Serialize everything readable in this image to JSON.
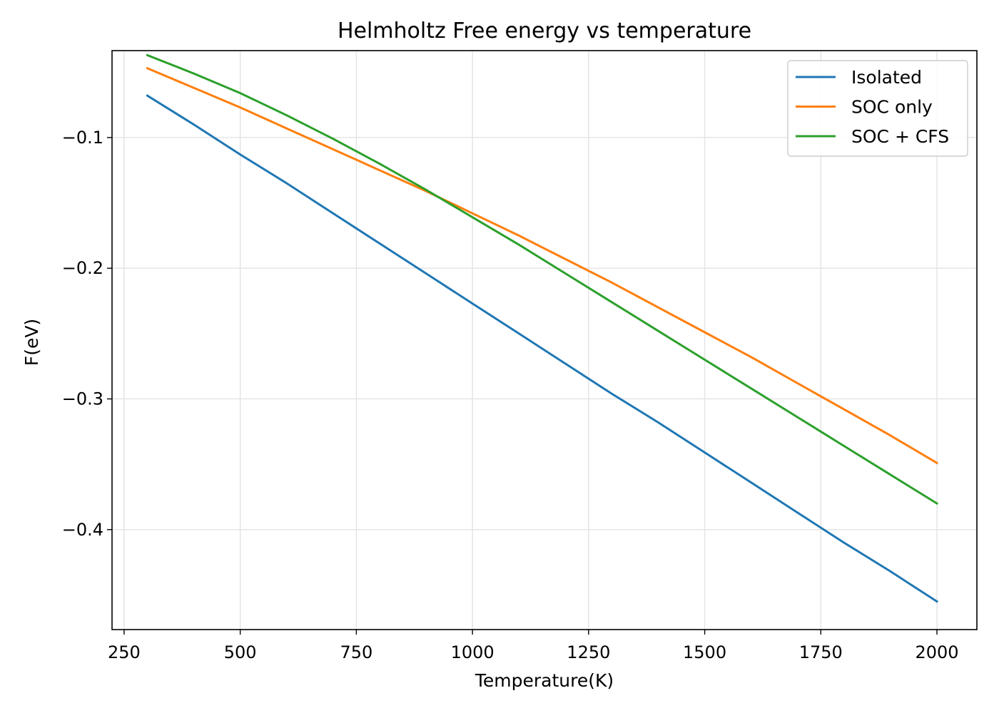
{
  "chart_data": {
    "type": "line",
    "title": "Helmholtz Free energy vs temperature",
    "xlabel": "Temperature(K)",
    "ylabel": "F(eV)",
    "xlim": [
      224,
      2086
    ],
    "ylim": [
      -0.4765,
      -0.0335
    ],
    "xticks": [
      250,
      500,
      750,
      1000,
      1250,
      1500,
      1750,
      2000
    ],
    "xtick_labels": [
      "250",
      "500",
      "750",
      "1000",
      "1250",
      "1500",
      "1750",
      "2000"
    ],
    "yticks": [
      -0.1,
      -0.2,
      -0.3,
      -0.4
    ],
    "ytick_labels": [
      "−0.1",
      "−0.2",
      "−0.3",
      "−0.4"
    ],
    "grid": true,
    "legend_position": "top-right",
    "x": [
      300,
      400,
      500,
      600,
      700,
      800,
      900,
      1000,
      1100,
      1200,
      1300,
      1400,
      1500,
      1600,
      1700,
      1800,
      1900,
      2000
    ],
    "series": [
      {
        "name": "Isolated",
        "color": "#1f77b4",
        "values": [
          -0.068,
          -0.09,
          -0.113,
          -0.135,
          -0.158,
          -0.181,
          -0.204,
          -0.227,
          -0.25,
          -0.273,
          -0.296,
          -0.318,
          -0.341,
          -0.364,
          -0.387,
          -0.41,
          -0.432,
          -0.455
        ]
      },
      {
        "name": "SOC only",
        "color": "#ff7f0e",
        "values": [
          -0.047,
          -0.062,
          -0.077,
          -0.093,
          -0.109,
          -0.125,
          -0.141,
          -0.158,
          -0.175,
          -0.193,
          -0.211,
          -0.23,
          -0.249,
          -0.268,
          -0.288,
          -0.308,
          -0.328,
          -0.349
        ]
      },
      {
        "name": "SOC + CFS",
        "color": "#2ca02c",
        "values": [
          -0.037,
          -0.051,
          -0.066,
          -0.083,
          -0.101,
          -0.12,
          -0.14,
          -0.161,
          -0.182,
          -0.204,
          -0.226,
          -0.248,
          -0.27,
          -0.292,
          -0.314,
          -0.336,
          -0.358,
          -0.38
        ]
      }
    ]
  }
}
